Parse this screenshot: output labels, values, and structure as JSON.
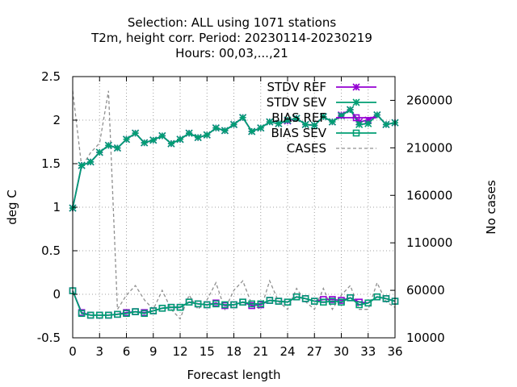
{
  "chart_data": {
    "type": "line",
    "title_lines": [
      "Selection: ALL using  1071 stations",
      "T2m, height corr.    Period: 20230114-20230219",
      "Hours:  00,03,...,21"
    ],
    "xlabel": "Forecast length",
    "ylabel": "deg C",
    "y2label": "No cases",
    "xlim": [
      0,
      36
    ],
    "ylim": [
      -0.5,
      2.5
    ],
    "y2lim": [
      10000,
      285000
    ],
    "x_ticks": [
      0,
      3,
      6,
      9,
      12,
      15,
      18,
      21,
      24,
      27,
      30,
      33,
      36
    ],
    "y_ticks": [
      -0.5,
      0,
      0.5,
      1,
      1.5,
      2,
      2.5
    ],
    "y_tick_labels": [
      "-0.5",
      "0",
      "0.5",
      "1",
      "1.5",
      "2",
      "2.5"
    ],
    "y2_ticks": [
      10000,
      60000,
      110000,
      160000,
      210000,
      260000
    ],
    "grid": true,
    "legend_position": "top-right",
    "x": [
      0,
      1,
      2,
      3,
      4,
      5,
      6,
      7,
      8,
      9,
      10,
      11,
      12,
      13,
      14,
      15,
      16,
      17,
      18,
      19,
      20,
      21,
      22,
      23,
      24,
      25,
      26,
      27,
      28,
      29,
      30,
      31,
      32,
      33,
      34,
      35,
      36
    ],
    "series": [
      {
        "name": "STDV REF",
        "axis": "left",
        "color": "#9400d3",
        "marker": "star",
        "values": [
          0.99,
          1.48,
          1.52,
          1.63,
          1.71,
          1.68,
          1.78,
          1.85,
          1.74,
          1.77,
          1.82,
          1.73,
          1.78,
          1.85,
          1.8,
          1.83,
          1.91,
          1.88,
          1.95,
          2.03,
          1.87,
          1.91,
          1.98,
          1.96,
          1.99,
          2.02,
          1.95,
          1.94,
          2.04,
          1.98,
          2.06,
          2.12,
          1.98,
          2.0,
          2.06,
          1.95,
          1.97
        ]
      },
      {
        "name": "STDV SEV",
        "axis": "left",
        "color": "#009e73",
        "marker": "star",
        "values": [
          0.99,
          1.48,
          1.52,
          1.63,
          1.71,
          1.68,
          1.78,
          1.85,
          1.74,
          1.77,
          1.82,
          1.73,
          1.78,
          1.85,
          1.8,
          1.83,
          1.91,
          1.88,
          1.95,
          2.03,
          1.87,
          1.91,
          1.98,
          1.96,
          2.0,
          2.02,
          1.95,
          1.94,
          2.04,
          1.98,
          2.05,
          2.12,
          1.95,
          1.96,
          2.06,
          1.95,
          1.97
        ]
      },
      {
        "name": "BIAS REF",
        "axis": "left",
        "color": "#9400d3",
        "marker": "square",
        "values": [
          0.04,
          -0.21,
          -0.24,
          -0.24,
          -0.24,
          -0.23,
          -0.21,
          -0.2,
          -0.21,
          -0.19,
          -0.16,
          -0.15,
          -0.15,
          -0.09,
          -0.11,
          -0.12,
          -0.1,
          -0.13,
          -0.12,
          -0.09,
          -0.13,
          -0.12,
          -0.07,
          -0.08,
          -0.09,
          -0.03,
          -0.05,
          -0.08,
          -0.06,
          -0.06,
          -0.07,
          -0.04,
          -0.09,
          -0.1,
          -0.03,
          -0.05,
          -0.08
        ]
      },
      {
        "name": "BIAS SEV",
        "axis": "left",
        "color": "#009e73",
        "marker": "square",
        "values": [
          0.04,
          -0.22,
          -0.24,
          -0.24,
          -0.24,
          -0.23,
          -0.22,
          -0.2,
          -0.22,
          -0.19,
          -0.16,
          -0.15,
          -0.15,
          -0.09,
          -0.11,
          -0.12,
          -0.11,
          -0.12,
          -0.12,
          -0.09,
          -0.11,
          -0.11,
          -0.07,
          -0.08,
          -0.09,
          -0.03,
          -0.05,
          -0.08,
          -0.09,
          -0.08,
          -0.09,
          -0.04,
          -0.12,
          -0.1,
          -0.03,
          -0.05,
          -0.08
        ]
      },
      {
        "name": "CASES",
        "axis": "right",
        "color": "#909090",
        "marker": "none",
        "dashed": true,
        "values": [
          270000,
          190000,
          205000,
          215000,
          270000,
          40000,
          55000,
          65000,
          50000,
          40000,
          60000,
          40000,
          30000,
          55000,
          40000,
          50000,
          68000,
          40000,
          60000,
          70000,
          45000,
          40000,
          70000,
          48000,
          40000,
          62000,
          48000,
          40000,
          62000,
          40000,
          55000,
          65000,
          40000,
          40000,
          68000,
          48000,
          42000
        ]
      }
    ]
  }
}
